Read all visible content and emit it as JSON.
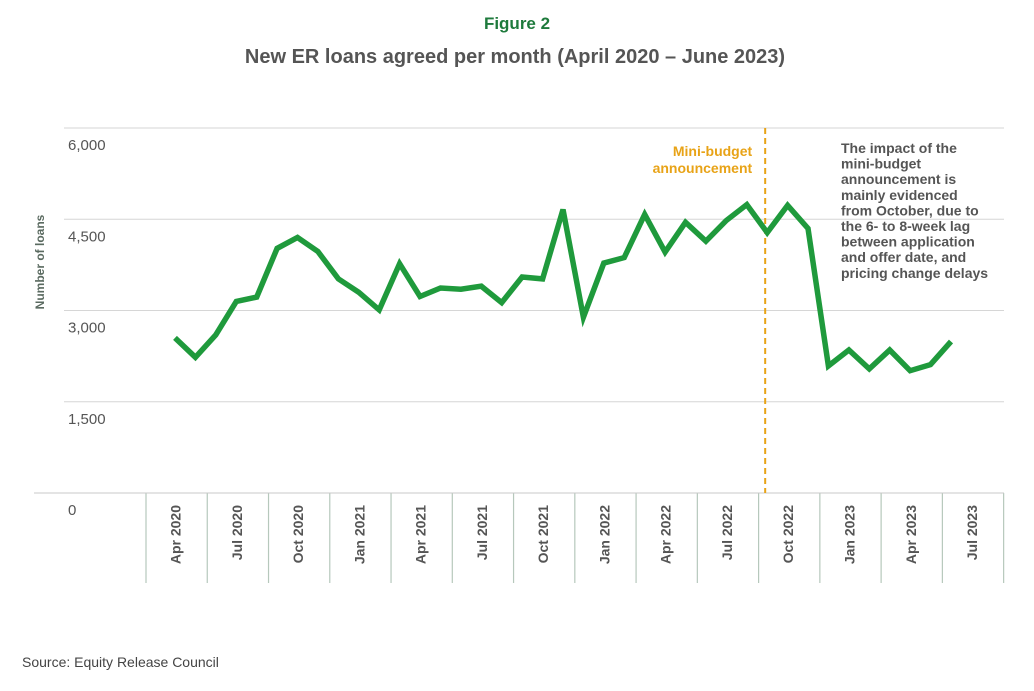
{
  "figure_label": "Figure 2",
  "title": "New ER loans agreed per month (April 2020 – June 2023)",
  "source": "Source: Equity Release Council",
  "colors": {
    "line": "#1f9a3c",
    "marker": "#e8a317",
    "grid": "#d6d6d6",
    "axis": "#b6c8bc"
  },
  "chart_data": {
    "type": "line",
    "ylabel": "Number of loans",
    "ylim": [
      0,
      6000
    ],
    "yticks": [
      0,
      1500,
      3000,
      4500,
      6000
    ],
    "ytick_labels": [
      "0",
      "1,500",
      "3,000",
      "4,500",
      "6,000"
    ],
    "xtick_labels": [
      "Apr 2020",
      "Jul 2020",
      "Oct 2020",
      "Jan 2021",
      "Apr 2021",
      "Jul 2021",
      "Oct 2021",
      "Jan 2022",
      "Apr 2022",
      "Jul 2022",
      "Oct 2022",
      "Jan 2023",
      "Apr 2023",
      "Jul 2023"
    ],
    "grid": true,
    "series": [
      {
        "x": [
          "2020-04",
          "2020-05",
          "2020-06",
          "2020-07",
          "2020-08",
          "2020-09",
          "2020-10",
          "2020-11",
          "2020-12",
          "2021-01",
          "2021-02",
          "2021-03",
          "2021-04",
          "2021-05",
          "2021-06",
          "2021-07",
          "2021-08",
          "2021-09",
          "2021-10",
          "2021-11",
          "2021-12",
          "2022-01",
          "2022-02",
          "2022-03",
          "2022-04",
          "2022-05",
          "2022-06",
          "2022-07",
          "2022-08",
          "2022-09",
          "2022-10",
          "2022-11",
          "2022-12",
          "2023-01",
          "2023-02",
          "2023-03",
          "2023-04",
          "2023-05",
          "2023-06"
        ],
        "values": [
          2550,
          2230,
          2600,
          3150,
          3220,
          4020,
          4200,
          3970,
          3520,
          3300,
          3010,
          3770,
          3230,
          3370,
          3350,
          3400,
          3130,
          3550,
          3520,
          4660,
          2890,
          3780,
          3870,
          4580,
          3960,
          4450,
          4140,
          4480,
          4740,
          4280,
          4730,
          4350,
          2090,
          2350,
          2040,
          2350,
          2010,
          2110,
          2490
        ]
      }
    ],
    "annotations": [
      {
        "label_lines": [
          "Mini-budget",
          "announcement"
        ],
        "at": "2022-09",
        "style": "dashed-vertical"
      },
      {
        "label_lines": [
          "The impact of the",
          "mini-budget",
          "announcement is",
          "mainly evidenced",
          "from October, due to",
          "the 6- to 8-week lag",
          "between application",
          "and offer date, and",
          "pricing change delays"
        ]
      }
    ]
  }
}
